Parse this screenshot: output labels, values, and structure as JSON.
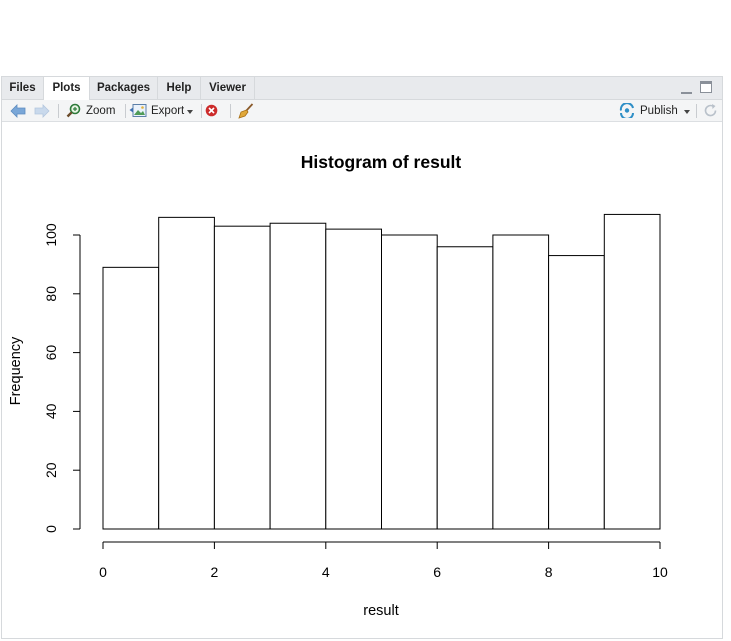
{
  "tabs": [
    {
      "label": "Files"
    },
    {
      "label": "Plots"
    },
    {
      "label": "Packages"
    },
    {
      "label": "Help"
    },
    {
      "label": "Viewer"
    }
  ],
  "toolbar": {
    "zoom_label": "Zoom",
    "export_label": "Export",
    "publish_label": "Publish"
  },
  "icons": {
    "back": "arrow-left-icon",
    "forward": "arrow-right-icon",
    "zoom": "magnifier-icon",
    "export": "image-export-icon",
    "remove": "red-x-circle-icon",
    "clear": "broom-icon",
    "publish": "publish-icon",
    "refresh": "refresh-icon"
  },
  "colors": {
    "bar_fill": "#ffffff",
    "bar_stroke": "#000000",
    "remove_icon": "#cc2b2b",
    "arrow_icon": "#7aa7d8",
    "publish_icon": "#2f8fc7"
  },
  "chart_data": {
    "type": "bar",
    "title": "Histogram of result",
    "xlabel": "result",
    "ylabel": "Frequency",
    "bins": [
      [
        0,
        1
      ],
      [
        1,
        2
      ],
      [
        2,
        3
      ],
      [
        3,
        4
      ],
      [
        4,
        5
      ],
      [
        5,
        6
      ],
      [
        6,
        7
      ],
      [
        7,
        8
      ],
      [
        8,
        9
      ],
      [
        9,
        10
      ]
    ],
    "values": [
      89,
      106,
      103,
      104,
      102,
      100,
      96,
      100,
      93,
      107
    ],
    "xlim": [
      0,
      10
    ],
    "ylim": [
      0,
      107
    ],
    "xticks": [
      0,
      2,
      4,
      6,
      8,
      10
    ],
    "yticks": [
      0,
      20,
      40,
      60,
      80,
      100
    ],
    "grid": false,
    "legend": "none"
  }
}
